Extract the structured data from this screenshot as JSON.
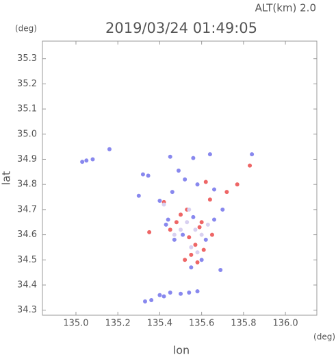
{
  "chart_data": {
    "type": "scatter",
    "title": "2019/03/24 01:49:05",
    "subtitle": "ALT(km) 2.0",
    "y_unit": "(deg)",
    "x_unit": "(deg)",
    "xlabel": "lon",
    "ylabel": "lat",
    "xlim": [
      134.84,
      136.15
    ],
    "ylim": [
      34.28,
      35.37
    ],
    "xticks": [
      {
        "value": 135,
        "label": "135.0"
      },
      135.2,
      135.4,
      135.6,
      135.8,
      {
        "value": 136,
        "label": "136.0"
      }
    ],
    "yticks": [
      34.3,
      34.4,
      34.5,
      34.6,
      34.7,
      34.8,
      34.9,
      {
        "value": 35,
        "label": "35.0"
      },
      35.1,
      35.2,
      35.3
    ],
    "series": [
      {
        "color": "#8888ee",
        "x": [
          135.05,
          135.03,
          135.08,
          135.16,
          135.32,
          135.345,
          135.3,
          135.4,
          135.45,
          135.56,
          135.64,
          135.49,
          135.52,
          135.58,
          135.66,
          135.7,
          135.44,
          135.56,
          135.66,
          135.43,
          135.51,
          135.62,
          135.47,
          135.55,
          135.6,
          135.69,
          135.33,
          135.36,
          135.4,
          135.45,
          135.5,
          135.54,
          135.58,
          135.42,
          135.84,
          135.46
        ],
        "y": [
          34.895,
          34.89,
          34.9,
          34.94,
          34.84,
          34.835,
          34.755,
          34.735,
          34.91,
          34.905,
          34.92,
          34.855,
          34.82,
          34.8,
          34.78,
          34.7,
          34.66,
          34.67,
          34.66,
          34.64,
          34.6,
          34.58,
          34.58,
          34.47,
          34.5,
          34.46,
          34.335,
          34.34,
          34.36,
          34.37,
          34.365,
          34.37,
          34.375,
          34.355,
          34.92,
          34.77
        ]
      },
      {
        "color": "#ee6666",
        "x": [
          135.83,
          135.62,
          135.77,
          135.72,
          135.64,
          135.53,
          135.6,
          135.48,
          135.59,
          135.35,
          135.45,
          135.54,
          135.57,
          135.61,
          135.55,
          135.58,
          135.52,
          135.65,
          135.42,
          135.5
        ],
        "y": [
          34.875,
          34.81,
          34.8,
          34.77,
          34.74,
          34.7,
          34.65,
          34.65,
          34.63,
          34.61,
          34.62,
          34.59,
          34.56,
          34.54,
          34.52,
          34.49,
          34.5,
          34.6,
          34.73,
          34.68
        ]
      },
      {
        "color": "#d8d0f0",
        "x": [
          135.53,
          135.57,
          135.5,
          135.6,
          135.55,
          135.58,
          135.47,
          135.63,
          135.54,
          135.42
        ],
        "y": [
          34.65,
          34.62,
          34.62,
          34.6,
          34.55,
          34.53,
          34.6,
          34.64,
          34.7,
          34.72
        ]
      }
    ]
  }
}
